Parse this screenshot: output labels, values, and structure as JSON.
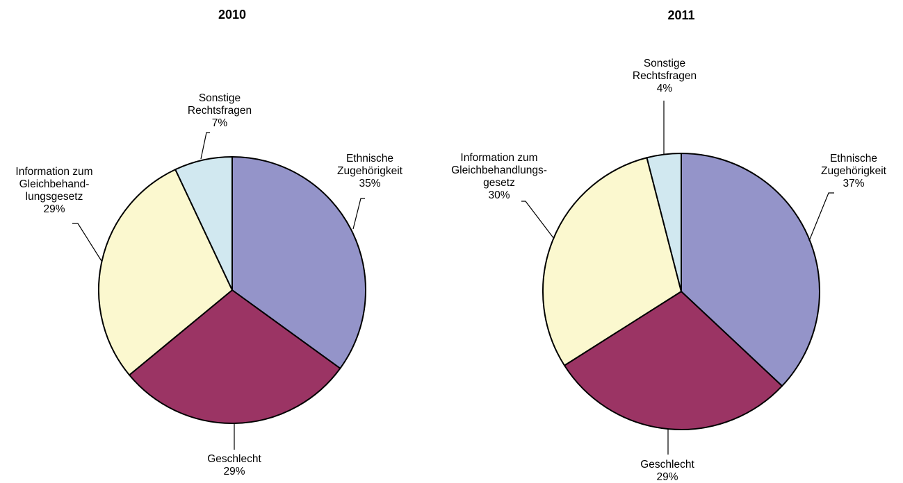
{
  "chart_data": [
    {
      "type": "pie",
      "title": "2010",
      "slices": [
        {
          "name": "Ethnische Zugehörigkeit",
          "label_lines": [
            "Ethnische",
            "Zugehörigkeit"
          ],
          "value": 35,
          "value_label": "35%",
          "color": "#9494c9"
        },
        {
          "name": "Geschlecht",
          "label_lines": [
            "Geschlecht"
          ],
          "value": 29,
          "value_label": "29%",
          "color": "#9b3464"
        },
        {
          "name": "Information zum Gleichbehandlungsgesetz",
          "label_lines": [
            "Information zum",
            "Gleichbehand-",
            "lungsgesetz"
          ],
          "value": 29,
          "value_label": "29%",
          "color": "#fbf8cf"
        },
        {
          "name": "Sonstige Rechtsfragen",
          "label_lines": [
            "Sonstige",
            "Rechtsfragen"
          ],
          "value": 7,
          "value_label": "7%",
          "color": "#d1e8f0"
        }
      ]
    },
    {
      "type": "pie",
      "title": "2011",
      "slices": [
        {
          "name": "Ethnische Zugehörigkeit",
          "label_lines": [
            "Ethnische",
            "Zugehörigkeit"
          ],
          "value": 37,
          "value_label": "37%",
          "color": "#9494c9"
        },
        {
          "name": "Geschlecht",
          "label_lines": [
            "Geschlecht"
          ],
          "value": 29,
          "value_label": "29%",
          "color": "#9b3464"
        },
        {
          "name": "Information zum Gleichbehandlungsgesetz",
          "label_lines": [
            "Information zum",
            "Gleichbehandlungs-",
            "gesetz"
          ],
          "value": 30,
          "value_label": "30%",
          "color": "#fbf8cf"
        },
        {
          "name": "Sonstige Rechtsfragen",
          "label_lines": [
            "Sonstige",
            "Rechtsfragen"
          ],
          "value": 4,
          "value_label": "4%",
          "color": "#d1e8f0"
        }
      ]
    }
  ]
}
